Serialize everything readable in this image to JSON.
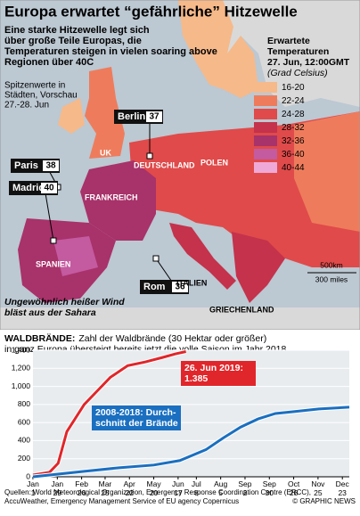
{
  "map": {
    "title": "Europa erwartet “gefährliche” Hitzewelle",
    "subtitle": [
      "Eine starke Hitzewelle legt sich",
      "über große Teile Europas, die",
      "Temperaturen steigen in vielen soaring above",
      "Regionen über 40C"
    ],
    "legend": {
      "title": [
        "Erwartete",
        "Temperaturen",
        "27. Jun, 12:00GMT"
      ],
      "unit": "(Grad Celsius)",
      "items": [
        {
          "label": "16-20",
          "color": "#f6b98a"
        },
        {
          "label": "22-24",
          "color": "#ee7c5c"
        },
        {
          "label": "24-28",
          "color": "#e04a4a"
        },
        {
          "label": "28-32",
          "color": "#c4324c"
        },
        {
          "label": "32-36",
          "color": "#a8326a"
        },
        {
          "label": "36-40",
          "color": "#c45aa0"
        },
        {
          "label": "40-44",
          "color": "#efa9d9"
        }
      ]
    },
    "peak_note": [
      "Spitzenwerte in",
      "Städten, Vorschau",
      "27.-28. Jun"
    ],
    "cities": [
      {
        "name": "Berlin",
        "temp": 37
      },
      {
        "name": "Paris",
        "temp": 38
      },
      {
        "name": "Madrid",
        "temp": 40
      },
      {
        "name": "Rom",
        "temp": 36
      }
    ],
    "countries": [
      "UK",
      "DEUTSCHLAND",
      "POLEN",
      "FRANKREICH",
      "SPANIEN",
      "ITALIEN",
      "GRIECHENLAND"
    ],
    "wind_note": [
      "Ungewöhnlich heißer Wind",
      "bläst aus der Sahara"
    ],
    "scale": [
      "500km",
      "300 miles"
    ]
  },
  "chart_data": {
    "type": "line",
    "title_label": "WALDBRÄNDE:",
    "title": [
      "Zahl der Waldbrände (30 Hektar oder größer)",
      "in ganz Europa übersteigt bereits jetzt die volle Saison im Jahr 2018"
    ],
    "xlim": [
      1,
      365
    ],
    "xticks": [
      {
        "value": 1,
        "label": "Jan 1"
      },
      {
        "value": 29,
        "label": "Jan 29"
      },
      {
        "value": 57,
        "label": "Feb 26"
      },
      {
        "value": 84,
        "label": "Mar 25"
      },
      {
        "value": 112,
        "label": "Apr 22"
      },
      {
        "value": 140,
        "label": "May 20"
      },
      {
        "value": 168,
        "label": "Jun 17"
      },
      {
        "value": 189,
        "label": "Jul 8"
      },
      {
        "value": 217,
        "label": "Aug 5"
      },
      {
        "value": 245,
        "label": "Sep 2"
      },
      {
        "value": 273,
        "label": "Sep 30"
      },
      {
        "value": 301,
        "label": "Oct 28"
      },
      {
        "value": 329,
        "label": "Nov 25"
      },
      {
        "value": 357,
        "label": "Dec 23"
      }
    ],
    "ylim": [
      0,
      1400
    ],
    "yticks": [
      0,
      200,
      400,
      600,
      800,
      {
        "value": 1000,
        "label": "1,000"
      },
      {
        "value": 1200,
        "label": "1,200"
      },
      {
        "value": 1400,
        "label": "1,400"
      }
    ],
    "grid": true,
    "series": [
      {
        "name": [
          "26. Jun 2019:",
          "1.385"
        ],
        "color": "#e0262a",
        "x": [
          1,
          20,
          30,
          40,
          50,
          60,
          75,
          90,
          110,
          130,
          150,
          165,
          177
        ],
        "values": [
          20,
          50,
          150,
          500,
          650,
          800,
          950,
          1100,
          1230,
          1270,
          1320,
          1360,
          1385
        ]
      },
      {
        "name": [
          "2008-2018: Durch-",
          "schnitt der Brände"
        ],
        "color": "#1a6fc0",
        "x": [
          1,
          60,
          100,
          140,
          170,
          200,
          220,
          240,
          260,
          280,
          300,
          330,
          365
        ],
        "values": [
          0,
          60,
          100,
          130,
          180,
          300,
          430,
          550,
          640,
          700,
          720,
          750,
          770
        ]
      }
    ]
  },
  "footer": {
    "sources": [
      "Quellen: World Meteorological Organization, Emergency Response Coordination Centre (ERCC),",
      "AccuWeather, Emergency Management Service of EU agency Copernicus"
    ],
    "credit": "© GRAPHIC NEWS"
  }
}
